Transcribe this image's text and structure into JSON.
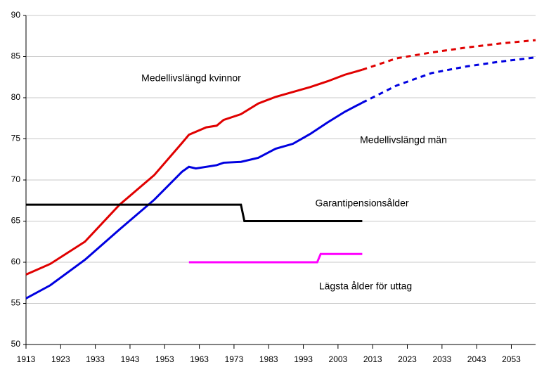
{
  "chart_data": {
    "type": "line",
    "xlim": [
      1913,
      2060
    ],
    "ylim": [
      50,
      90
    ],
    "xticks": [
      1913,
      1923,
      1933,
      1943,
      1953,
      1963,
      1973,
      1983,
      1993,
      2003,
      2013,
      2023,
      2033,
      2043,
      2053
    ],
    "yticks": [
      50,
      55,
      60,
      65,
      70,
      75,
      80,
      85,
      90
    ],
    "grid": true,
    "series": [
      {
        "name": "Medellivslängd kvinnor",
        "color": "#e00000",
        "x": [
          1913,
          1920,
          1930,
          1940,
          1950,
          1958,
          1960,
          1965,
          1968,
          1970,
          1975,
          1980,
          1985,
          1990,
          1995,
          2000,
          2005,
          2010
        ],
        "values": [
          58.5,
          59.8,
          62.5,
          67,
          70.6,
          74.5,
          75.5,
          76.4,
          76.6,
          77.3,
          78,
          79.3,
          80.1,
          80.7,
          81.3,
          82,
          82.8,
          83.4
        ]
      },
      {
        "color": "#e00000",
        "style": "dashed",
        "x": [
          2010,
          2020,
          2030,
          2040,
          2050,
          2060
        ],
        "values": [
          83.4,
          84.8,
          85.5,
          86.1,
          86.6,
          87
        ]
      },
      {
        "name": "Medellivslängd män",
        "color": "#0000e0",
        "x": [
          1913,
          1920,
          1930,
          1940,
          1950,
          1958,
          1960,
          1962,
          1968,
          1970,
          1975,
          1980,
          1985,
          1990,
          1995,
          2000,
          2005,
          2010
        ],
        "values": [
          55.6,
          57.2,
          60.3,
          64,
          67.6,
          71,
          71.6,
          71.4,
          71.8,
          72.1,
          72.2,
          72.7,
          73.8,
          74.4,
          75.6,
          77,
          78.3,
          79.4
        ]
      },
      {
        "color": "#0000e0",
        "style": "dashed",
        "x": [
          2010,
          2020,
          2030,
          2040,
          2050,
          2060
        ],
        "values": [
          79.4,
          81.5,
          83,
          83.8,
          84.4,
          84.9
        ]
      },
      {
        "name": "Garantipensionsålder",
        "color": "#000000",
        "x": [
          1913,
          1975,
          1976,
          2010
        ],
        "values": [
          67,
          67,
          65,
          65
        ]
      },
      {
        "name": "Lägsta ålder för uttag",
        "color": "#ff00ff",
        "x": [
          1960,
          1997,
          1998,
          2010
        ],
        "values": [
          60,
          60,
          61,
          61
        ]
      }
    ]
  }
}
